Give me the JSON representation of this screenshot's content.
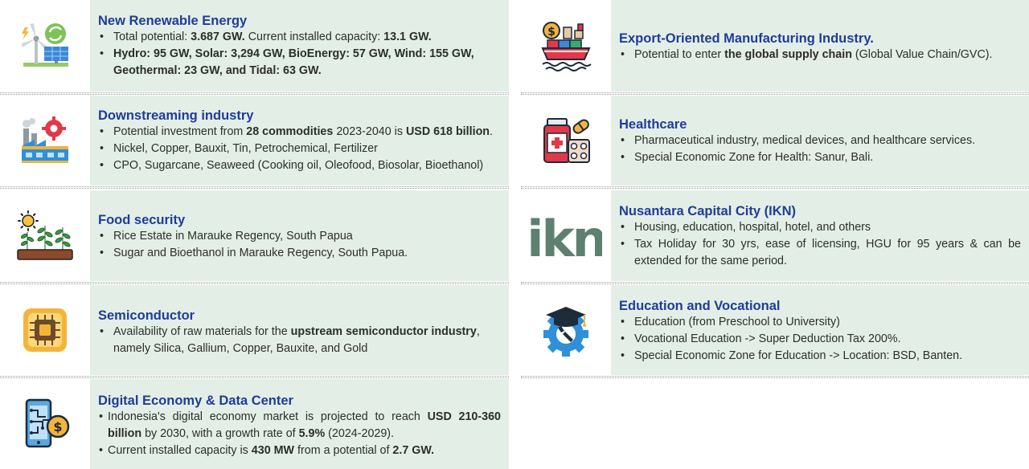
{
  "left": [
    {
      "title": "New Renewable Energy",
      "icon": "renewable-energy-icon",
      "bullets": [
        [
          "Total potential: ",
          {
            "b": "3.687 GW."
          },
          " Current installed capacity: ",
          {
            "b": "13.1 GW."
          }
        ],
        [
          {
            "b": "Hydro: 95 GW, Solar: 3,294 GW, BioEnergy: 57 GW, Wind: 155 GW, Geothermal: 23 GW, and Tidal: 63 GW."
          }
        ]
      ]
    },
    {
      "title": "Downstreaming industry",
      "icon": "factory-gear-icon",
      "bullets": [
        [
          "Potential investment from ",
          {
            "b": "28 commodities"
          },
          " 2023-2040 is ",
          {
            "b": "USD 618 billion"
          },
          "."
        ],
        [
          "Nickel, Copper, Bauxit, Tin, Petrochemical, Fertilizer"
        ],
        [
          "CPO, Sugarcane, Seaweed (Cooking oil, Oleofood, Biosolar, Bioethanol)"
        ]
      ]
    },
    {
      "title": "Food security",
      "icon": "crops-sun-icon",
      "bullets": [
        [
          "Rice Estate in Marauke Regency, South Papua"
        ],
        [
          "Sugar and Bioethanol in Marauke Regency, South Papua."
        ]
      ]
    },
    {
      "title": "Semiconductor",
      "icon": "microchip-icon",
      "bullets": [
        [
          "Availability of raw materials for the ",
          {
            "b": "upstream semiconductor industry"
          },
          ", namely Silica, Gallium, Copper, Bauxite, and Gold"
        ]
      ]
    },
    {
      "title": "Digital Economy & Data Center",
      "icon": "digital-economy-phone-icon",
      "bullets": [
        [
          "Indonesia's digital economy market is projected to reach ",
          {
            "b": "USD 210-360 billion"
          },
          " by 2030, with a growth rate of ",
          {
            "b": "5.9%"
          },
          " (2024-2029)."
        ],
        [
          "Current installed capacity is ",
          {
            "b": "430 MW"
          },
          " from a potential of ",
          {
            "b": "2.7 GW."
          }
        ]
      ]
    }
  ],
  "right": [
    {
      "title": "Export-Oriented Manufacturing Industry.",
      "icon": "cargo-ship-export-icon",
      "bullets": [
        [
          "Potential to enter ",
          {
            "b": "the global supply chain"
          },
          " (Global Value Chain/GVC)."
        ]
      ]
    },
    {
      "title": "Healthcare",
      "icon": "medicine-bottle-icon",
      "bullets": [
        [
          "Pharmaceutical industry, medical devices, and healthcare services."
        ],
        [
          "Special Economic Zone for Health: Sanur, Bali."
        ]
      ]
    },
    {
      "title": "Nusantara Capital City (IKN)",
      "icon": "ikn-logo",
      "logo_text": "ikn",
      "bullets": [
        [
          "Housing, education, hospital, hotel, and others"
        ],
        [
          "Tax Holiday for 30 yrs, ease of licensing, HGU for 95 years & can be extended for the same period."
        ]
      ]
    },
    {
      "title": "Education and Vocational",
      "icon": "graduation-cap-gear-icon",
      "bullets": [
        [
          "Education (from Preschool to University)"
        ],
        [
          "Vocational Education -> Super Deduction Tax 200%."
        ],
        [
          "Special Economic Zone for Education -> Location: BSD, Banten."
        ]
      ]
    }
  ],
  "colors": {
    "panel": "#e3efe6",
    "title": "#1f3c99",
    "text": "#2d2d2d",
    "ikn_logo": "#5d8070"
  }
}
